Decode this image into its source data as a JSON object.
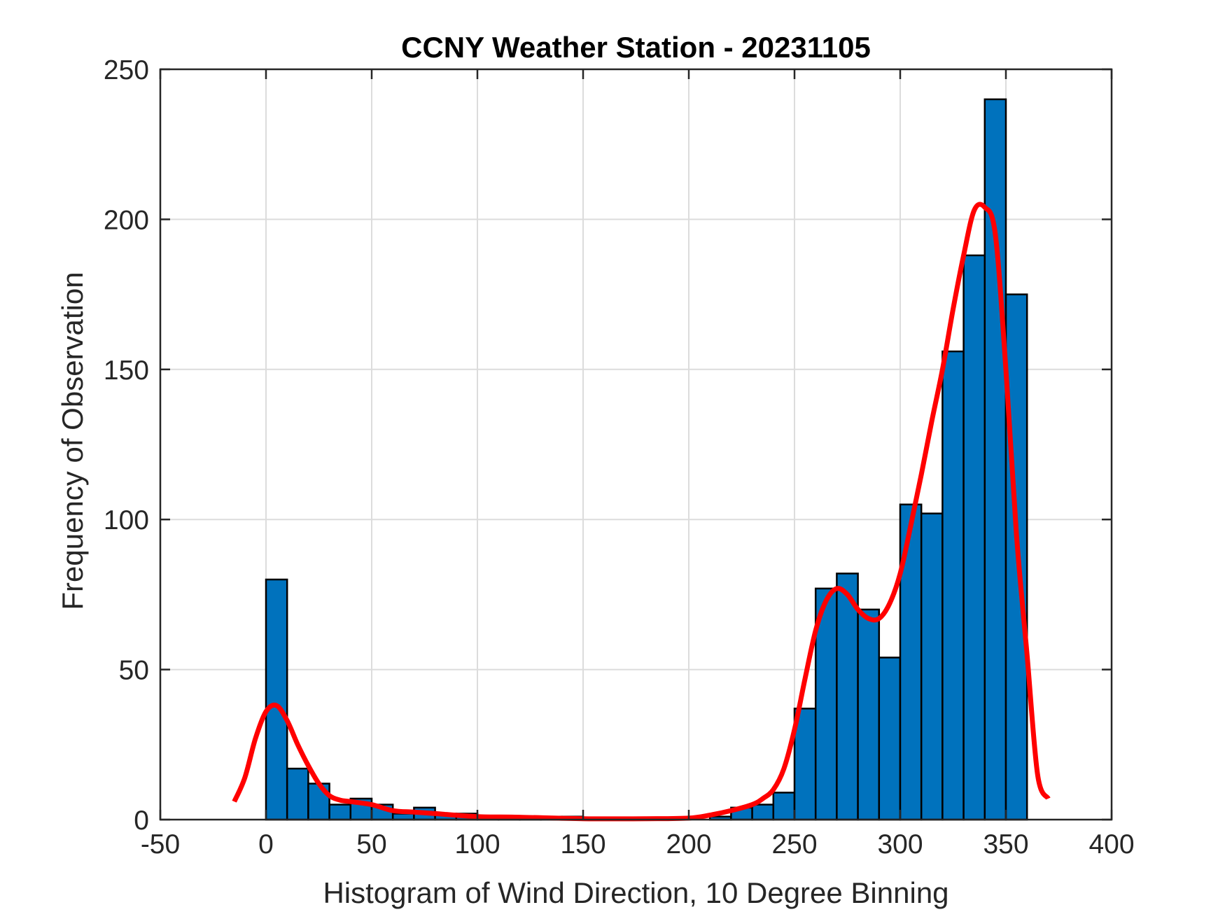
{
  "chart_data": {
    "type": "bar",
    "title": "CCNY Weather Station - 20231105",
    "xlabel": "Histogram of Wind Direction, 10 Degree Binning",
    "ylabel": "Frequency of Observation",
    "xlim": [
      -50,
      400
    ],
    "ylim": [
      0,
      250
    ],
    "xticks": [
      -50,
      0,
      50,
      100,
      150,
      200,
      250,
      300,
      350,
      400
    ],
    "yticks": [
      0,
      50,
      100,
      150,
      200,
      250
    ],
    "xtick_labels": [
      "-50",
      "0",
      "50",
      "100",
      "150",
      "200",
      "250",
      "300",
      "350",
      "400"
    ],
    "ytick_labels": [
      "0",
      "50",
      "100",
      "150",
      "200",
      "250"
    ],
    "grid": true,
    "bin_edges": [
      0,
      10,
      20,
      30,
      40,
      50,
      60,
      70,
      80,
      90,
      100,
      110,
      120,
      130,
      140,
      150,
      160,
      170,
      180,
      190,
      200,
      210,
      220,
      230,
      240,
      250,
      260,
      270,
      280,
      290,
      300,
      310,
      320,
      330,
      340,
      350,
      360
    ],
    "values": [
      80,
      17,
      12,
      5,
      7,
      5,
      2,
      4,
      2,
      2,
      1,
      1,
      1,
      1,
      1,
      0,
      0,
      0,
      0,
      0,
      0,
      1,
      4,
      5,
      9,
      37,
      77,
      82,
      70,
      54,
      105,
      102,
      156,
      188,
      240,
      175
    ],
    "series": [
      {
        "name": "Histogram",
        "type": "bar",
        "color": "#0072BD"
      },
      {
        "name": "Density fit",
        "type": "line",
        "color": "#FF0000",
        "x": [
          -15,
          -10,
          -5,
          0,
          5,
          10,
          15,
          20,
          25,
          30,
          35,
          40,
          50,
          60,
          70,
          80,
          100,
          120,
          150,
          180,
          200,
          210,
          220,
          230,
          235,
          240,
          245,
          250,
          255,
          260,
          265,
          270,
          275,
          280,
          285,
          290,
          295,
          300,
          305,
          310,
          315,
          320,
          325,
          330,
          335,
          340,
          345,
          350,
          355,
          360,
          365,
          370
        ],
        "y": [
          6,
          14,
          27,
          36,
          38,
          33,
          25,
          18,
          12,
          8,
          6.5,
          6,
          5,
          3,
          2.5,
          2,
          1,
          0.8,
          0.3,
          0.3,
          0.5,
          1.5,
          3,
          5,
          7,
          10,
          17,
          30,
          47,
          63,
          73,
          77,
          75,
          70,
          67,
          67,
          72,
          82,
          98,
          115,
          133,
          150,
          170,
          188,
          203,
          204,
          195,
          150,
          95,
          55,
          15,
          7
        ]
      }
    ]
  }
}
